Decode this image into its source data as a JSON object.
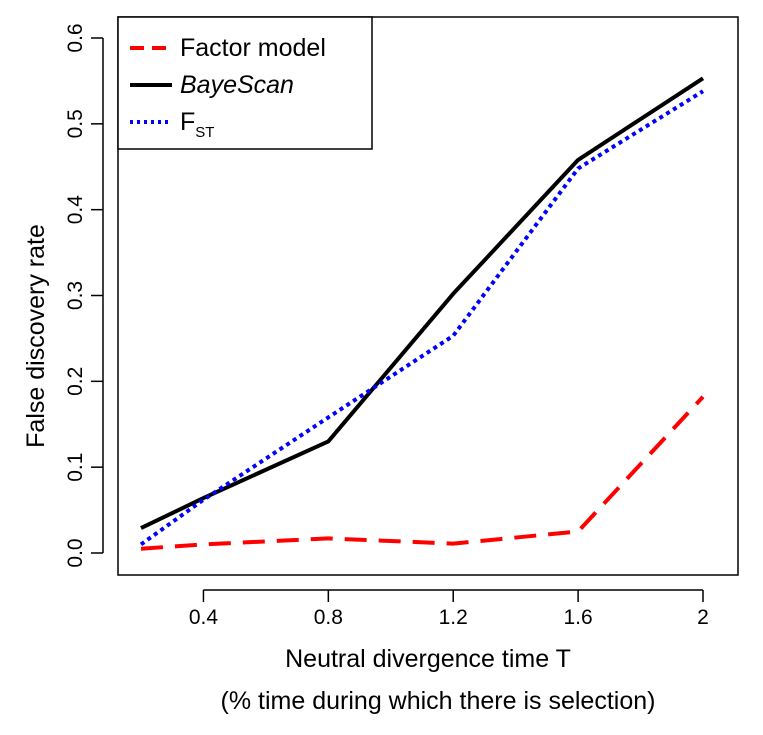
{
  "chart_data": {
    "type": "line",
    "title": "",
    "xlabel": "Neutral divergence time T",
    "xlabel_sub": "(% time during which there is selection)",
    "ylabel": "False discovery rate",
    "x": [
      0.2,
      0.4,
      0.8,
      1.2,
      1.6,
      2.0
    ],
    "xlim": [
      0.2,
      2.0
    ],
    "ylim": [
      0.0,
      0.6
    ],
    "xticks": [
      0.4,
      0.8,
      1.2,
      1.6,
      2.0
    ],
    "xtick_labels": [
      "0.4",
      "0.8",
      "1.2",
      "1.6",
      "2"
    ],
    "yticks": [
      0.0,
      0.1,
      0.2,
      0.3,
      0.4,
      0.5,
      0.6
    ],
    "ytick_labels": [
      "0.0",
      "0.1",
      "0.2",
      "0.3",
      "0.4",
      "0.5",
      "0.6"
    ],
    "grid": false,
    "legend_position": "top-left",
    "series": [
      {
        "name": "Factor model",
        "color": "#ff0000",
        "style": "dashed",
        "values": [
          0.005,
          0.01,
          0.017,
          0.011,
          0.025,
          0.182
        ]
      },
      {
        "name": "BayeScan",
        "name_style": "italic",
        "color": "#000000",
        "style": "solid",
        "values": [
          0.029,
          0.064,
          0.13,
          0.302,
          0.458,
          0.553
        ]
      },
      {
        "name": "F",
        "name_subscript": "ST",
        "color": "#0000ff",
        "style": "dotted",
        "values": [
          0.01,
          0.062,
          0.158,
          0.253,
          0.448,
          0.538
        ]
      }
    ]
  }
}
